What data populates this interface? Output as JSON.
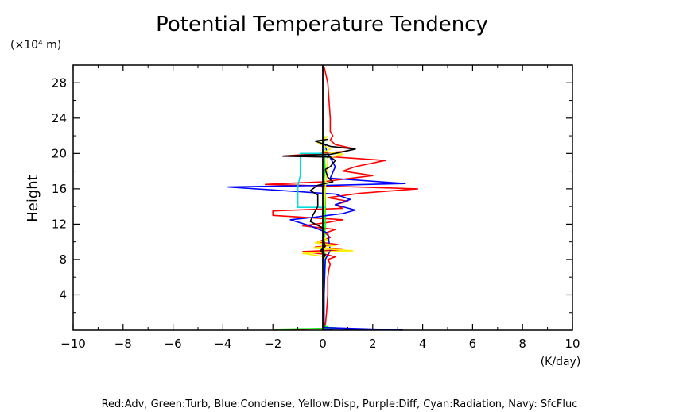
{
  "chart_data": {
    "type": "line",
    "title": "Potential Temperature Tendency",
    "ylabel": "Height",
    "y_unit_label": "(×10⁴ m)",
    "x_unit_label": "(K/day)",
    "legend_text": "Red:Adv, Green:Turb, Blue:Condense, Yellow:Disp, Purple:Diff, Cyan:Radiation, Navy: SfcFluc",
    "xlim": [
      -10,
      10
    ],
    "ylim": [
      0,
      30
    ],
    "x_ticks": [
      -10,
      -8,
      -6,
      -4,
      -2,
      0,
      2,
      4,
      6,
      8,
      10
    ],
    "x_tick_labels": [
      "−10",
      "−8",
      "−6",
      "−4",
      "−2",
      "0",
      "2",
      "4",
      "6",
      "8",
      "10"
    ],
    "y_ticks": [
      4,
      8,
      12,
      16,
      20,
      24,
      28
    ],
    "y_tick_labels": [
      "4",
      "8",
      "12",
      "16",
      "20",
      "24",
      "28"
    ],
    "series": [
      {
        "color": "#ff0000",
        "width": 1.6,
        "points": [
          [
            -2.0,
            0
          ],
          [
            0,
            0.2
          ],
          [
            0.1,
            0.5
          ],
          [
            0.15,
            2
          ],
          [
            0.2,
            4
          ],
          [
            0.2,
            6
          ],
          [
            0.25,
            7
          ],
          [
            0.3,
            7.5
          ],
          [
            0.2,
            8
          ],
          [
            0.5,
            8.3
          ],
          [
            0.1,
            8.6
          ],
          [
            -0.8,
            8.9
          ],
          [
            0.8,
            9.1
          ],
          [
            -0.3,
            9.4
          ],
          [
            0.6,
            9.7
          ],
          [
            -0.2,
            10
          ],
          [
            0.3,
            10.5
          ],
          [
            0.1,
            11
          ],
          [
            0.5,
            11.4
          ],
          [
            -0.8,
            11.8
          ],
          [
            0.2,
            12.2
          ],
          [
            0.8,
            12.5
          ],
          [
            -2.0,
            13
          ],
          [
            -2.0,
            13.5
          ],
          [
            0.8,
            13.8
          ],
          [
            0.5,
            14.2
          ],
          [
            1.0,
            14.6
          ],
          [
            0.2,
            15
          ],
          [
            1.5,
            15.5
          ],
          [
            3.8,
            16
          ],
          [
            0.3,
            16.3
          ],
          [
            -2.3,
            16.5
          ],
          [
            0.0,
            16.8
          ],
          [
            2.0,
            17.5
          ],
          [
            0.8,
            18
          ],
          [
            1.3,
            18.5
          ],
          [
            2.5,
            19.2
          ],
          [
            0.5,
            19.6
          ],
          [
            -1.6,
            19.7
          ],
          [
            0.8,
            20.2
          ],
          [
            1.3,
            20.5
          ],
          [
            0.5,
            21
          ],
          [
            0.3,
            21.5
          ],
          [
            0.4,
            22
          ],
          [
            0.3,
            22.5
          ],
          [
            0.3,
            24
          ],
          [
            0.25,
            26
          ],
          [
            0.2,
            28
          ],
          [
            0.05,
            29.8
          ]
        ]
      },
      {
        "color": "#00ff00",
        "width": 1.6,
        "points": [
          [
            -2.0,
            0.1
          ],
          [
            0,
            0.2
          ],
          [
            0.3,
            0.3
          ],
          [
            1.3,
            0.1
          ],
          [
            0.3,
            0.25
          ],
          [
            0.05,
            0.5
          ],
          [
            0.05,
            4
          ],
          [
            0.1,
            7.8
          ],
          [
            0.1,
            8.3
          ],
          [
            0.05,
            9
          ],
          [
            0.1,
            12
          ],
          [
            0.1,
            15.8
          ],
          [
            0.05,
            17
          ],
          [
            0.1,
            18.2
          ],
          [
            0.05,
            20
          ],
          [
            0.05,
            22
          ]
        ]
      },
      {
        "color": "#0000ff",
        "width": 1.6,
        "points": [
          [
            0,
            0.05
          ],
          [
            0.5,
            0.15
          ],
          [
            1.8,
            0.05
          ],
          [
            3.2,
            0.02
          ],
          [
            0.05,
            0.3
          ],
          [
            0.05,
            4
          ],
          [
            0.1,
            8
          ],
          [
            0.3,
            9
          ],
          [
            0.2,
            11
          ],
          [
            -0.5,
            11.8
          ],
          [
            -1.3,
            12.5
          ],
          [
            -0.3,
            12.8
          ],
          [
            0.2,
            13
          ],
          [
            0.8,
            13.2
          ],
          [
            1.3,
            13.6
          ],
          [
            0.5,
            14.2
          ],
          [
            1.1,
            14.8
          ],
          [
            0.5,
            15.4
          ],
          [
            -3.8,
            16.2
          ],
          [
            0.3,
            16.4
          ],
          [
            3.3,
            16.6
          ],
          [
            0.3,
            17.2
          ],
          [
            0.5,
            18.5
          ],
          [
            0.3,
            19.5
          ],
          [
            0.15,
            20.3
          ],
          [
            0.1,
            21
          ]
        ]
      },
      {
        "color": "#ffee00",
        "width": 1.6,
        "points": [
          [
            0,
            8
          ],
          [
            0.1,
            8.3
          ],
          [
            -0.8,
            8.7
          ],
          [
            1.2,
            9
          ],
          [
            -0.4,
            9.3
          ],
          [
            0.5,
            9.6
          ],
          [
            -0.3,
            9.9
          ],
          [
            0.2,
            10.2
          ],
          [
            0,
            10.5
          ],
          [
            0.1,
            16
          ],
          [
            0.2,
            19.5
          ],
          [
            0.5,
            19.7
          ],
          [
            0.8,
            19.9
          ],
          [
            0.1,
            20.2
          ],
          [
            0.3,
            20.5
          ],
          [
            -0.2,
            21.2
          ],
          [
            0.1,
            21.7
          ],
          [
            0.2,
            22
          ]
        ]
      },
      {
        "color": "#00dddd",
        "width": 1.6,
        "points": [
          [
            0.1,
            13.9
          ],
          [
            -1.0,
            13.9
          ],
          [
            -1.0,
            16.3
          ],
          [
            -0.9,
            17.5
          ],
          [
            -0.9,
            20
          ],
          [
            0,
            20
          ],
          [
            0.2,
            19.5
          ]
        ]
      },
      {
        "color": "#000000",
        "width": 1.6,
        "points": [
          [
            0,
            8
          ],
          [
            0.1,
            8.5
          ],
          [
            -0.1,
            9
          ],
          [
            0.1,
            9.5
          ],
          [
            0,
            10.5
          ],
          [
            0.05,
            11.5
          ],
          [
            -0.5,
            12.3
          ],
          [
            -0.4,
            13
          ],
          [
            -0.2,
            14
          ],
          [
            -0.2,
            15.3
          ],
          [
            -0.5,
            15.8
          ],
          [
            -0.2,
            16.4
          ],
          [
            0.4,
            16.8
          ],
          [
            0.2,
            17.3
          ],
          [
            0.1,
            18.2
          ],
          [
            0.3,
            18.5
          ],
          [
            0.5,
            19.2
          ],
          [
            0.3,
            19.6
          ],
          [
            -1.6,
            19.7
          ],
          [
            0.3,
            19.9
          ],
          [
            0.5,
            20
          ],
          [
            1.3,
            20.5
          ],
          [
            0.3,
            20.8
          ],
          [
            -0.3,
            21.4
          ],
          [
            0.2,
            21.6
          ]
        ]
      }
    ]
  }
}
